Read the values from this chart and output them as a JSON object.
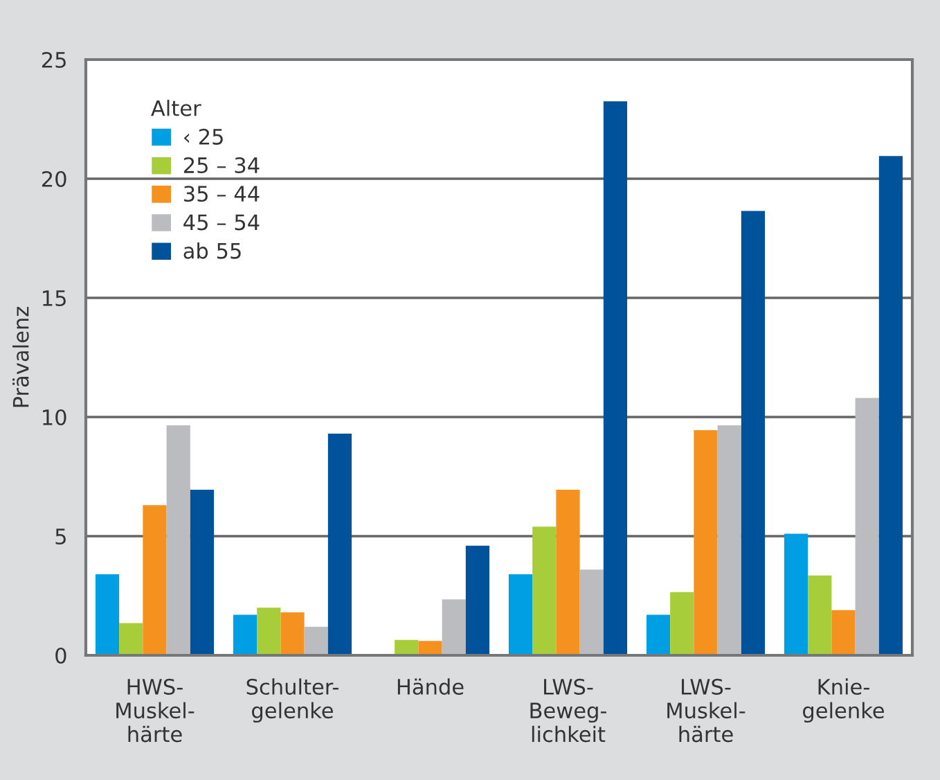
{
  "chart_data": {
    "type": "bar",
    "ylabel": "Prävalenz",
    "legend_title": "Alter",
    "categories": [
      "HWS-\nMuskel-\nhärte",
      "Schulter-\ngelenke",
      "Hände",
      "LWS-\nBeweg-\nlichkeit",
      "LWS-\nMuskel-\nhärte",
      "Knie-\ngelenke"
    ],
    "series": [
      {
        "name": "‹ 25",
        "color": "#009fe3",
        "values": [
          3.4,
          1.7,
          0,
          3.4,
          1.7,
          5.1
        ]
      },
      {
        "name": "25 – 34",
        "color": "#a8cd3a",
        "values": [
          1.35,
          2.0,
          0.65,
          5.4,
          2.65,
          3.35
        ]
      },
      {
        "name": "35 – 44",
        "color": "#f5911e",
        "values": [
          6.3,
          1.8,
          0.6,
          6.95,
          9.45,
          1.9
        ]
      },
      {
        "name": "45 – 54",
        "color": "#bbbcbf",
        "values": [
          9.65,
          1.2,
          2.35,
          3.6,
          9.65,
          10.8
        ]
      },
      {
        "name": "ab 55",
        "color": "#00529b",
        "values": [
          6.95,
          9.3,
          4.6,
          23.25,
          18.65,
          20.95
        ]
      }
    ],
    "ylim": [
      0,
      25
    ],
    "yticks": [
      0,
      5,
      10,
      15,
      20,
      25
    ],
    "grid": "y",
    "legend": "top left"
  }
}
